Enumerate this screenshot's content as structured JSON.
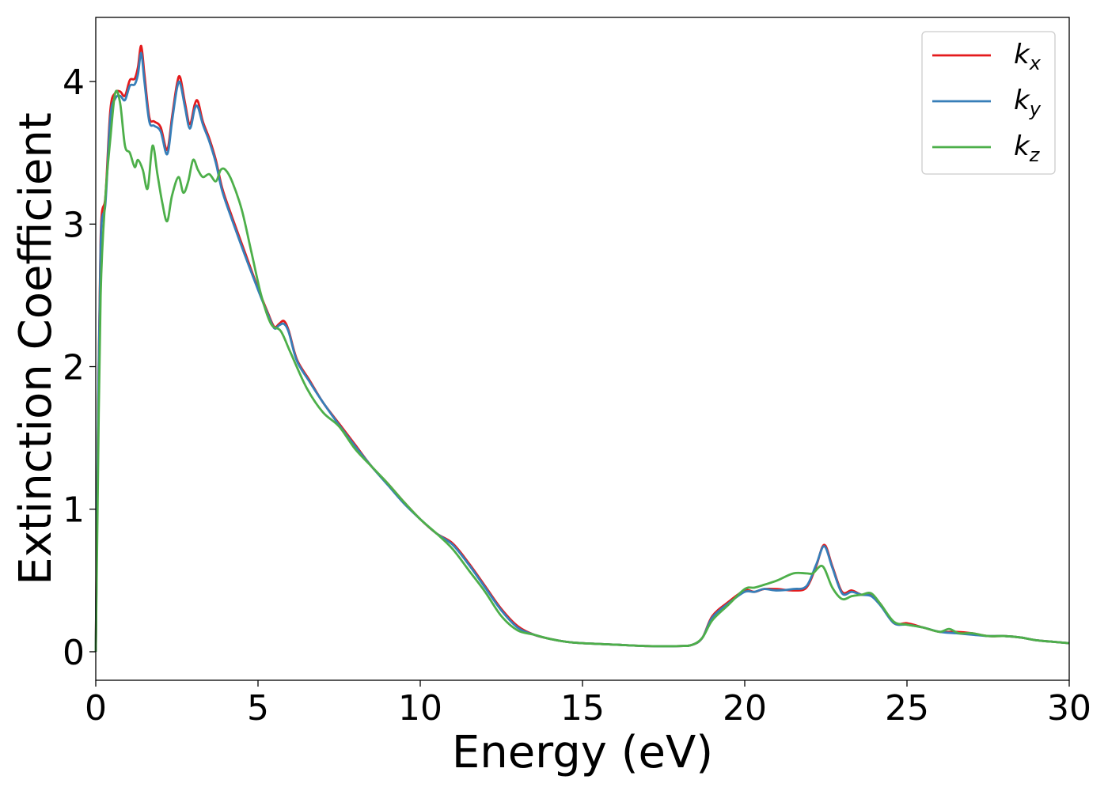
{
  "chart_data": {
    "type": "line",
    "xlabel": "Energy (eV)",
    "ylabel": "Extinction Coefficient",
    "xlim": [
      0,
      30
    ],
    "ylim": [
      -0.2,
      4.45
    ],
    "xticks": [
      0,
      5,
      10,
      15,
      20,
      25,
      30
    ],
    "yticks": [
      0,
      1,
      2,
      3,
      4
    ],
    "grid": false,
    "legend": {
      "placement": "top-right"
    },
    "series": [
      {
        "name": "k_x",
        "label_main": "k",
        "label_sub": "x",
        "color": "#e41a1c",
        "x": [
          0,
          0.05,
          0.15,
          0.3,
          0.45,
          0.6,
          0.75,
          0.9,
          1.05,
          1.2,
          1.3,
          1.4,
          1.5,
          1.65,
          1.8,
          2.0,
          2.2,
          2.35,
          2.5,
          2.6,
          2.75,
          2.9,
          3.05,
          3.15,
          3.3,
          3.5,
          3.7,
          3.9,
          4.2,
          4.6,
          5.0,
          5.3,
          5.5,
          5.65,
          5.8,
          5.95,
          6.2,
          6.6,
          7.0,
          7.5,
          8.0,
          8.5,
          9.0,
          9.5,
          10.0,
          10.5,
          11.0,
          11.5,
          12.0,
          12.5,
          13.0,
          13.5,
          14.0,
          14.5,
          15.0,
          16.0,
          17.0,
          18.0,
          18.4,
          18.7,
          19.0,
          19.5,
          20.0,
          20.3,
          20.6,
          21.0,
          21.5,
          21.9,
          22.2,
          22.45,
          22.7,
          23.0,
          23.3,
          23.6,
          23.9,
          24.2,
          24.6,
          25.0,
          25.5,
          26.0,
          26.5,
          27.0,
          27.5,
          28.0,
          28.5,
          29.0,
          29.5,
          30.0
        ],
        "y": [
          0,
          1.2,
          2.9,
          3.2,
          3.8,
          3.92,
          3.93,
          3.9,
          4.01,
          4.02,
          4.1,
          4.25,
          4.05,
          3.75,
          3.72,
          3.68,
          3.52,
          3.75,
          3.98,
          4.03,
          3.85,
          3.7,
          3.84,
          3.86,
          3.72,
          3.6,
          3.45,
          3.25,
          3.05,
          2.8,
          2.55,
          2.38,
          2.28,
          2.3,
          2.32,
          2.25,
          2.05,
          1.9,
          1.75,
          1.6,
          1.45,
          1.3,
          1.18,
          1.05,
          0.93,
          0.83,
          0.76,
          0.62,
          0.46,
          0.3,
          0.18,
          0.12,
          0.09,
          0.07,
          0.06,
          0.05,
          0.04,
          0.04,
          0.05,
          0.1,
          0.25,
          0.35,
          0.43,
          0.42,
          0.44,
          0.44,
          0.43,
          0.45,
          0.6,
          0.75,
          0.6,
          0.42,
          0.43,
          0.4,
          0.4,
          0.33,
          0.2,
          0.2,
          0.17,
          0.14,
          0.14,
          0.13,
          0.11,
          0.11,
          0.1,
          0.08,
          0.07,
          0.06
        ]
      },
      {
        "name": "k_y",
        "label_main": "k",
        "label_sub": "y",
        "color": "#377eb8",
        "x": [
          0,
          0.05,
          0.15,
          0.3,
          0.45,
          0.6,
          0.75,
          0.9,
          1.05,
          1.2,
          1.3,
          1.4,
          1.5,
          1.65,
          1.8,
          2.0,
          2.2,
          2.35,
          2.5,
          2.6,
          2.75,
          2.9,
          3.05,
          3.15,
          3.3,
          3.5,
          3.7,
          3.9,
          4.2,
          4.6,
          5.0,
          5.3,
          5.5,
          5.65,
          5.8,
          5.95,
          6.2,
          6.6,
          7.0,
          7.5,
          8.0,
          8.5,
          9.0,
          9.5,
          10.0,
          10.5,
          11.0,
          11.5,
          12.0,
          12.5,
          13.0,
          13.5,
          14.0,
          14.5,
          15.0,
          16.0,
          17.0,
          18.0,
          18.4,
          18.7,
          19.0,
          19.5,
          20.0,
          20.3,
          20.6,
          21.0,
          21.5,
          21.9,
          22.2,
          22.45,
          22.7,
          23.0,
          23.3,
          23.6,
          23.9,
          24.2,
          24.6,
          25.0,
          25.5,
          26.0,
          26.5,
          27.0,
          27.5,
          28.0,
          28.5,
          29.0,
          29.5,
          30.0
        ],
        "y": [
          0,
          1.15,
          2.85,
          3.15,
          3.75,
          3.88,
          3.9,
          3.87,
          3.97,
          3.98,
          4.05,
          4.2,
          4.0,
          3.72,
          3.69,
          3.65,
          3.49,
          3.72,
          3.95,
          3.99,
          3.82,
          3.67,
          3.81,
          3.82,
          3.7,
          3.58,
          3.43,
          3.23,
          3.03,
          2.78,
          2.54,
          2.37,
          2.27,
          2.29,
          2.3,
          2.24,
          2.04,
          1.89,
          1.75,
          1.59,
          1.44,
          1.3,
          1.17,
          1.04,
          0.93,
          0.83,
          0.75,
          0.61,
          0.45,
          0.29,
          0.17,
          0.12,
          0.09,
          0.07,
          0.06,
          0.05,
          0.04,
          0.04,
          0.05,
          0.1,
          0.24,
          0.34,
          0.42,
          0.42,
          0.44,
          0.43,
          0.44,
          0.46,
          0.61,
          0.74,
          0.59,
          0.41,
          0.42,
          0.4,
          0.39,
          0.32,
          0.2,
          0.19,
          0.17,
          0.14,
          0.13,
          0.12,
          0.11,
          0.11,
          0.1,
          0.08,
          0.07,
          0.06
        ]
      },
      {
        "name": "k_z",
        "label_main": "k",
        "label_sub": "z",
        "color": "#4daf4a",
        "x": [
          0,
          0.05,
          0.15,
          0.3,
          0.45,
          0.6,
          0.75,
          0.9,
          1.05,
          1.2,
          1.3,
          1.45,
          1.6,
          1.75,
          1.9,
          2.05,
          2.2,
          2.35,
          2.55,
          2.7,
          2.85,
          3.0,
          3.15,
          3.3,
          3.5,
          3.7,
          3.85,
          4.0,
          4.2,
          4.5,
          4.8,
          5.1,
          5.4,
          5.7,
          6.0,
          6.5,
          7.0,
          7.5,
          8.0,
          8.5,
          9.0,
          9.5,
          10.0,
          10.5,
          11.0,
          11.5,
          12.0,
          12.5,
          13.0,
          13.5,
          14.0,
          14.5,
          15.0,
          16.0,
          17.0,
          18.0,
          18.4,
          18.7,
          19.0,
          19.5,
          20.0,
          20.3,
          20.6,
          21.0,
          21.5,
          21.9,
          22.1,
          22.4,
          22.7,
          23.0,
          23.3,
          23.6,
          23.9,
          24.2,
          24.6,
          25.0,
          25.5,
          26.0,
          26.3,
          26.6,
          27.0,
          27.5,
          28.0,
          28.5,
          29.0,
          29.5,
          30.0
        ],
        "y": [
          0,
          0.9,
          2.5,
          3.2,
          3.6,
          3.92,
          3.85,
          3.55,
          3.5,
          3.4,
          3.45,
          3.38,
          3.25,
          3.55,
          3.35,
          3.15,
          3.02,
          3.2,
          3.33,
          3.22,
          3.3,
          3.45,
          3.38,
          3.33,
          3.35,
          3.3,
          3.38,
          3.38,
          3.3,
          3.1,
          2.8,
          2.5,
          2.3,
          2.25,
          2.1,
          1.85,
          1.68,
          1.58,
          1.42,
          1.3,
          1.18,
          1.05,
          0.93,
          0.83,
          0.72,
          0.57,
          0.42,
          0.25,
          0.15,
          0.12,
          0.09,
          0.07,
          0.06,
          0.05,
          0.04,
          0.04,
          0.05,
          0.1,
          0.22,
          0.33,
          0.44,
          0.45,
          0.47,
          0.5,
          0.55,
          0.55,
          0.55,
          0.6,
          0.45,
          0.37,
          0.39,
          0.4,
          0.41,
          0.33,
          0.21,
          0.19,
          0.17,
          0.14,
          0.16,
          0.13,
          0.13,
          0.11,
          0.11,
          0.1,
          0.08,
          0.07,
          0.06
        ]
      }
    ]
  }
}
